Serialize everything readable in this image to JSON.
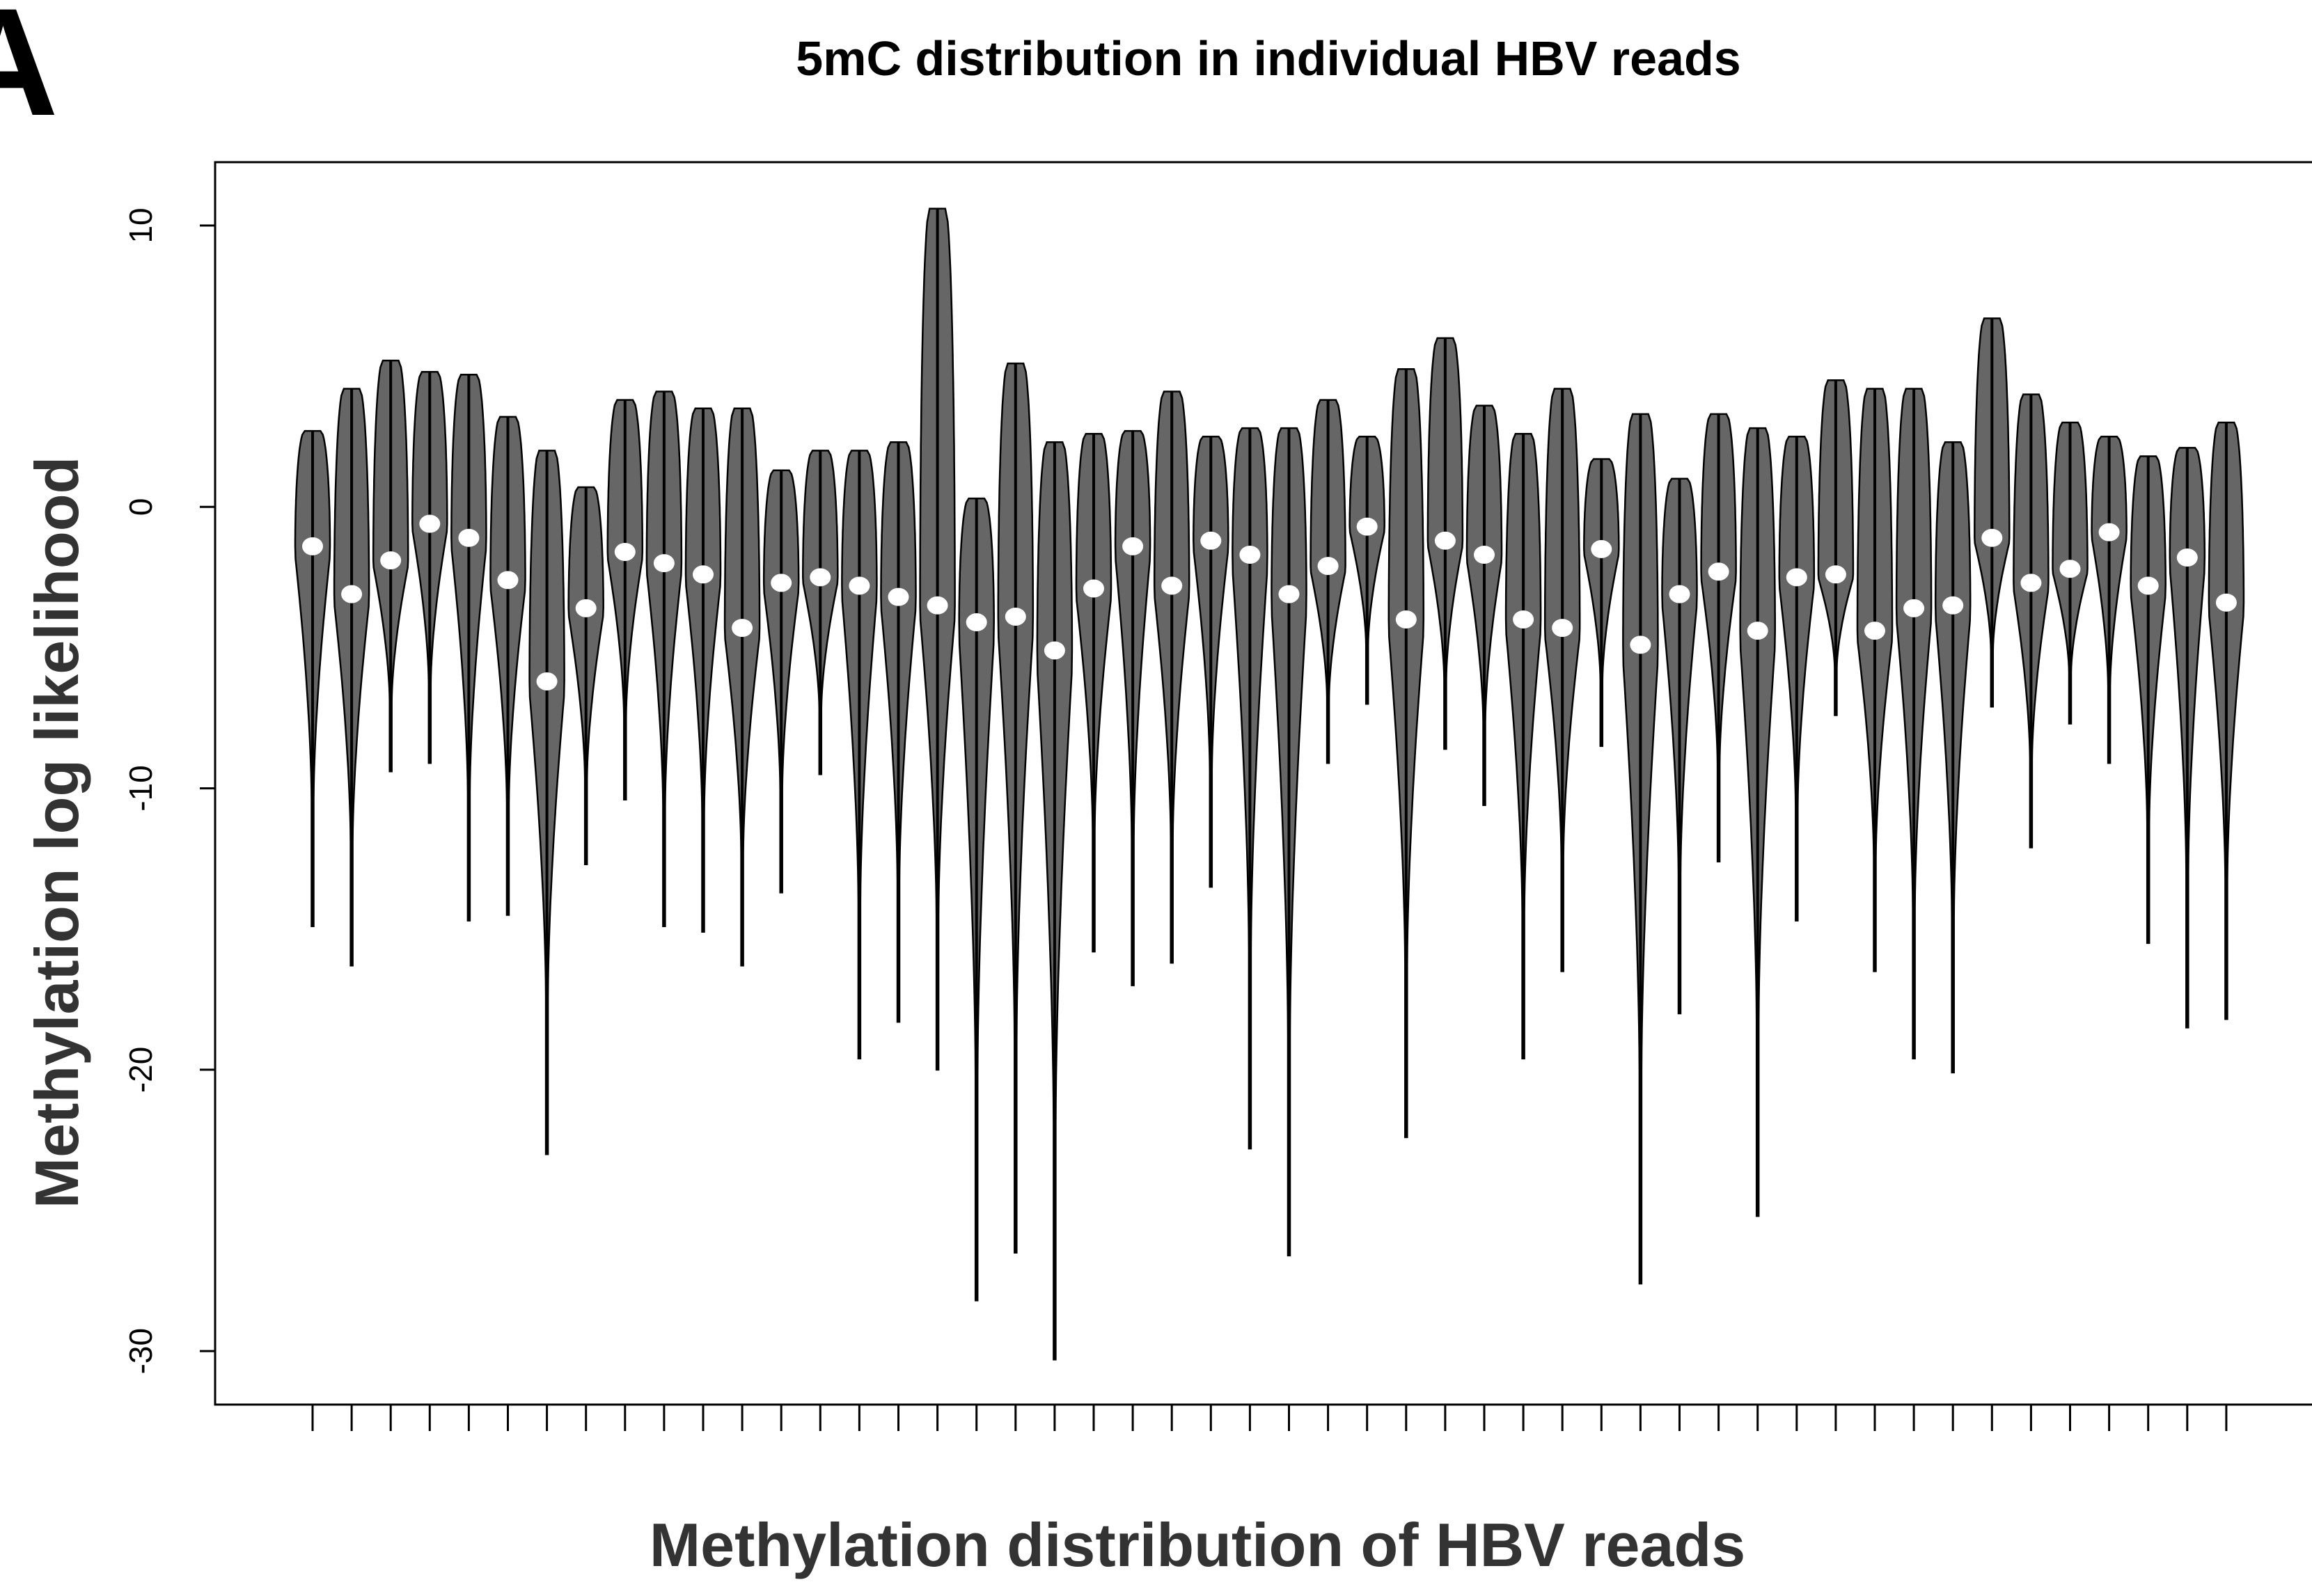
{
  "chart_data": {
    "type": "violin",
    "panel_label": "A",
    "title": "5mC distribution in individual HBV reads",
    "ylabel": "Methylation log likelihood",
    "xlabel": "Methylation distribution of HBV reads",
    "color": "#666666",
    "median_color": "#ffffff",
    "categories": [
      null,
      null,
      null,
      null,
      null,
      null,
      null,
      null,
      null,
      null,
      null,
      null,
      null,
      null,
      null,
      null,
      null,
      null,
      null,
      null,
      null,
      null,
      null,
      null,
      null,
      null,
      null,
      null,
      null,
      null,
      null,
      null,
      null,
      null,
      null,
      null,
      null,
      null,
      null,
      null,
      null,
      null,
      null,
      null,
      null,
      null,
      null,
      null,
      null,
      null
    ],
    "max": [
      2.7,
      4.2,
      5.2,
      4.8,
      4.7,
      3.2,
      2.0,
      0.7,
      3.8,
      4.1,
      3.5,
      3.5,
      1.3,
      2.0,
      2.0,
      2.3,
      10.6,
      0.3,
      5.1,
      2.3,
      2.6,
      2.7,
      4.1,
      2.5,
      2.8,
      2.8,
      3.8,
      2.5,
      4.9,
      6.0,
      3.6,
      2.6,
      4.2,
      1.7,
      3.3,
      1.0,
      3.3,
      2.8,
      2.5,
      4.5,
      4.2,
      4.2,
      2.3,
      6.7,
      4.0,
      3.0,
      2.5,
      1.8,
      2.1,
      3.0
    ],
    "min": [
      -14.9,
      -16.3,
      -9.4,
      -9.1,
      -14.7,
      -14.5,
      -23.0,
      -12.7,
      -10.4,
      -14.9,
      -15.1,
      -16.3,
      -13.7,
      -9.5,
      -19.6,
      -18.3,
      -20.0,
      -28.2,
      -26.5,
      -30.3,
      -15.8,
      -17.0,
      -16.2,
      -13.5,
      -22.8,
      -26.6,
      -9.1,
      -7.0,
      -22.4,
      -8.6,
      -10.6,
      -19.6,
      -16.5,
      -8.5,
      -27.6,
      -18.0,
      -12.6,
      -25.2,
      -14.7,
      -7.4,
      -16.5,
      -19.6,
      -20.1,
      -7.1,
      -12.1,
      -7.7,
      -9.1,
      -15.5,
      -18.5,
      -18.2
    ],
    "median": [
      -1.4,
      -3.1,
      -1.9,
      -0.6,
      -1.1,
      -2.6,
      -6.2,
      -3.6,
      -1.6,
      -2.0,
      -2.4,
      -4.3,
      -2.7,
      -2.5,
      -2.8,
      -3.2,
      -3.5,
      -4.1,
      -3.9,
      -5.1,
      -2.9,
      -1.4,
      -2.8,
      -1.2,
      -1.7,
      -3.1,
      -2.1,
      -0.7,
      -4.0,
      -1.2,
      -1.7,
      -4.0,
      -4.3,
      -1.5,
      -4.9,
      -3.1,
      -2.3,
      -4.4,
      -2.5,
      -2.4,
      -4.4,
      -3.6,
      -3.5,
      -1.1,
      -2.7,
      -2.2,
      -0.9,
      -2.8,
      -1.8,
      -3.4
    ],
    "ylim": [
      -31.9,
      12.25
    ],
    "yticks": [
      -30,
      -20,
      -10,
      0,
      10
    ]
  }
}
